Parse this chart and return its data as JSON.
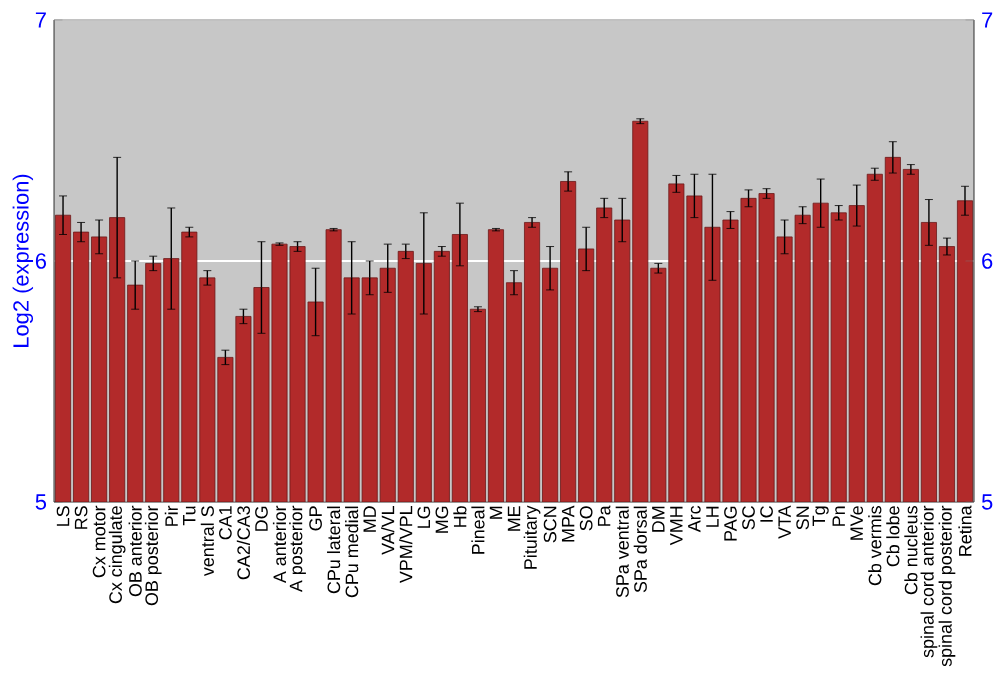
{
  "chart_data": {
    "type": "bar",
    "ylabel": "Log2 (expression)",
    "categories": [
      "LS",
      "RS",
      "Cx motor",
      "Cx cingulate",
      "OB anterior",
      "OB posterior",
      "Pir",
      "Tu",
      "ventral S",
      "CA1",
      "CA2/CA3",
      "DG",
      "A anterior",
      "A posterior",
      "GP",
      "CPu lateral",
      "CPu medial",
      "MD",
      "VA/VL",
      "VPM/VPL",
      "LG",
      "MG",
      "Hb",
      "Pineal",
      "M",
      "ME",
      "Pituitary",
      "SCN",
      "MPA",
      "SO",
      "Pa",
      "SPa ventral",
      "SPa dorsal",
      "DM",
      "VMH",
      "Arc",
      "LH",
      "PAG",
      "SC",
      "IC",
      "VTA",
      "SN",
      "Tg",
      "Pn",
      "MVe",
      "Cb vermis",
      "Cb lobe",
      "Cb nucleus",
      "spinal cord anterior",
      "spinal cord posterior",
      "Retina"
    ],
    "values": [
      6.19,
      6.12,
      6.1,
      6.18,
      5.9,
      5.99,
      6.01,
      6.12,
      5.93,
      5.6,
      5.77,
      5.89,
      6.07,
      6.06,
      5.83,
      6.13,
      5.93,
      5.93,
      5.97,
      6.04,
      5.99,
      6.04,
      6.11,
      5.8,
      6.13,
      5.91,
      6.16,
      5.97,
      6.33,
      6.05,
      6.22,
      6.17,
      6.58,
      5.97,
      6.32,
      6.27,
      6.14,
      6.17,
      6.26,
      6.28,
      6.1,
      6.19,
      6.24,
      6.2,
      6.23,
      6.36,
      6.43,
      6.38,
      6.16,
      6.06,
      6.25
    ],
    "errors": [
      0.08,
      0.04,
      0.07,
      0.25,
      0.1,
      0.03,
      0.21,
      0.02,
      0.03,
      0.03,
      0.03,
      0.19,
      0.005,
      0.02,
      0.14,
      0.005,
      0.15,
      0.07,
      0.1,
      0.03,
      0.21,
      0.02,
      0.13,
      0.01,
      0.005,
      0.05,
      0.02,
      0.09,
      0.04,
      0.09,
      0.04,
      0.09,
      0.01,
      0.02,
      0.035,
      0.09,
      0.22,
      0.035,
      0.035,
      0.02,
      0.07,
      0.035,
      0.1,
      0.03,
      0.085,
      0.025,
      0.065,
      0.02,
      0.095,
      0.035,
      0.06
    ],
    "color": "#b22a2a",
    "ylim": [
      5,
      7
    ],
    "yticks": [
      5,
      6,
      7
    ],
    "y2lim": [
      5,
      7
    ],
    "y2ticks": [
      5,
      6,
      7
    ],
    "grid": "y"
  }
}
